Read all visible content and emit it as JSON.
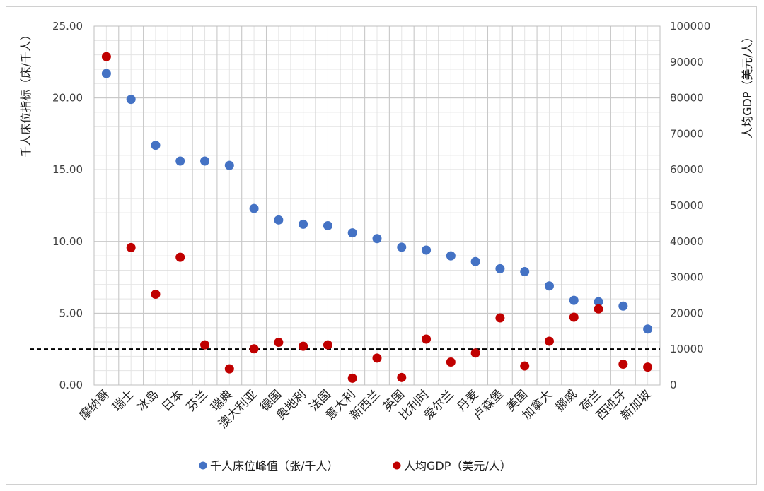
{
  "chart_data": {
    "type": "scatter",
    "categories": [
      "摩纳哥",
      "瑞士",
      "冰岛",
      "日本",
      "芬兰",
      "瑞典",
      "澳大利亚",
      "德国",
      "奥地利",
      "法国",
      "意大利",
      "新西兰",
      "英国",
      "比利时",
      "爱尔兰",
      "丹麦",
      "卢森堡",
      "美国",
      "加拿大",
      "挪威",
      "荷兰",
      "西班牙",
      "新加坡"
    ],
    "series": [
      {
        "name": "千人床位峰值（张/千人）",
        "axis": "left",
        "color": "#4472C4",
        "values": [
          21.7,
          19.9,
          16.7,
          15.6,
          15.6,
          15.3,
          12.3,
          11.5,
          11.2,
          11.1,
          10.6,
          10.2,
          9.6,
          9.4,
          9.0,
          8.6,
          8.1,
          7.9,
          6.9,
          5.9,
          5.8,
          5.5,
          3.9
        ]
      },
      {
        "name": "人均GDP（美元/人）",
        "axis": "right",
        "color": "#C00000",
        "values": [
          91500,
          38300,
          25300,
          35600,
          11200,
          4500,
          10100,
          11900,
          10800,
          11200,
          1900,
          7500,
          2100,
          12800,
          6400,
          8900,
          18700,
          5300,
          12200,
          18900,
          21200,
          5800,
          5000
        ]
      }
    ],
    "y_left": {
      "label": "千人床位指标（床/千人）",
      "ylim": [
        0,
        25
      ],
      "ticks": [
        "0.00",
        "5.00",
        "10.00",
        "15.00",
        "20.00",
        "25.00"
      ]
    },
    "y_right": {
      "label": "人均GDP（美元/人）",
      "ylim": [
        0,
        100000
      ],
      "ticks": [
        "0",
        "10000",
        "20000",
        "30000",
        "40000",
        "50000",
        "60000",
        "70000",
        "80000",
        "90000",
        "100000"
      ]
    },
    "reference_line": {
      "axis": "right",
      "value": 10000,
      "style": "dashed",
      "color": "#000000"
    },
    "grid": true,
    "legend": "bottom"
  }
}
